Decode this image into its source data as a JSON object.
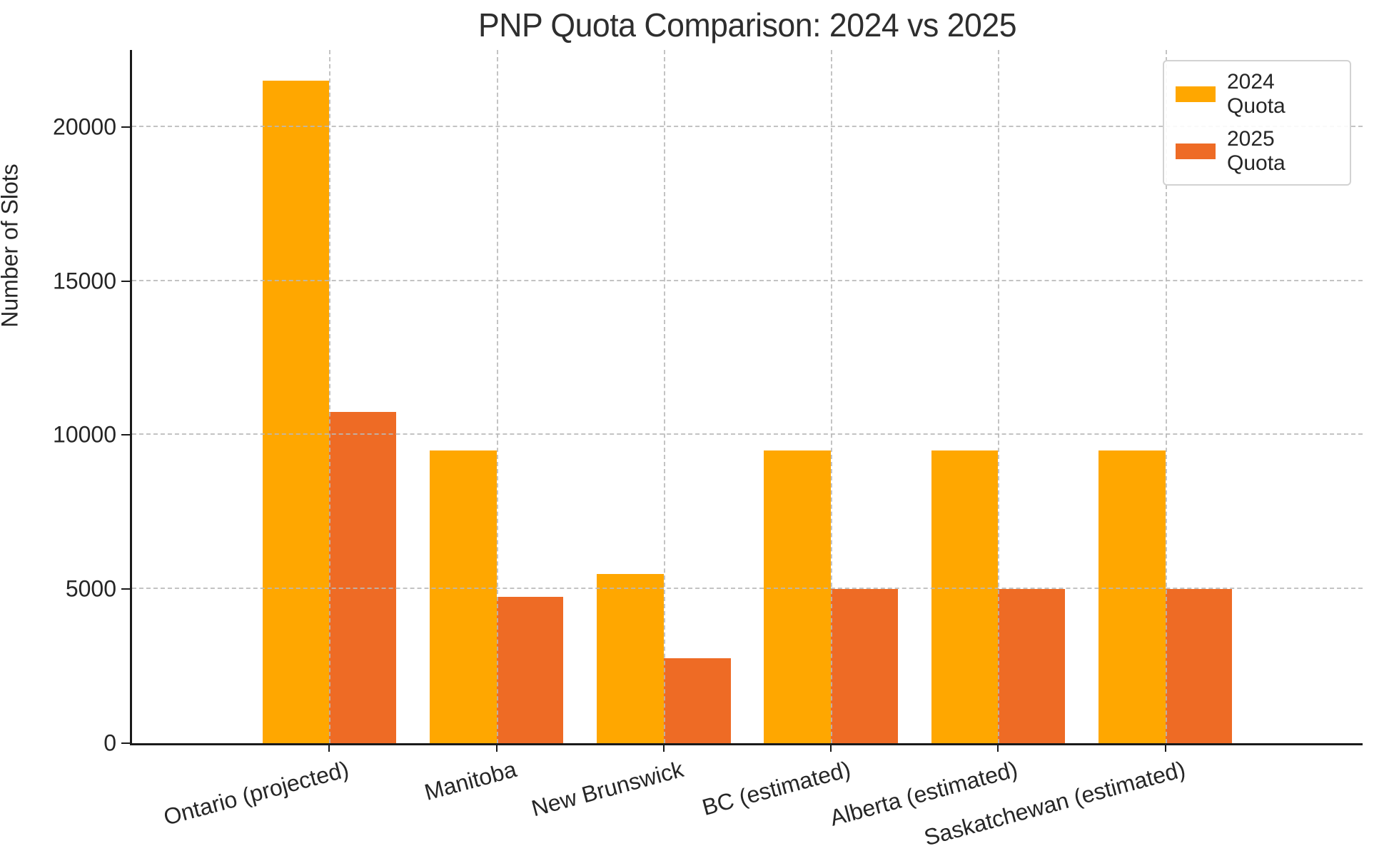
{
  "chart_data": {
    "type": "bar",
    "title": "PNP Quota Comparison: 2024 vs 2025",
    "xlabel": "",
    "ylabel": "Number of Slots",
    "categories": [
      "Ontario (projected)",
      "Manitoba",
      "New Brunswick",
      "BC (estimated)",
      "Alberta (estimated)",
      "Saskatchewan (estimated)"
    ],
    "series": [
      {
        "name": "2024 Quota",
        "color": "#FFA700",
        "values": [
          21500,
          9500,
          5500,
          9500,
          9500,
          9500
        ]
      },
      {
        "name": "2025 Quota",
        "color": "#EE6B25",
        "values": [
          10750,
          4750,
          2750,
          5000,
          5000,
          5000
        ]
      }
    ],
    "yticks": [
      0,
      5000,
      10000,
      15000,
      20000
    ],
    "ytick_labels": [
      "0",
      "5000",
      "10000",
      "15000",
      "20000"
    ],
    "ylim": [
      0,
      22500
    ],
    "grid": "dashed-both-axes",
    "grid_color": "#bdbdbd",
    "legend_position": "upper-right",
    "legend_labels": [
      "2024 Quota",
      "2025 Quota"
    ],
    "xtick_rotation_deg": 15,
    "bar_group_width_fraction": 0.8,
    "text_color": "#262626",
    "background_color": "#ffffff"
  }
}
